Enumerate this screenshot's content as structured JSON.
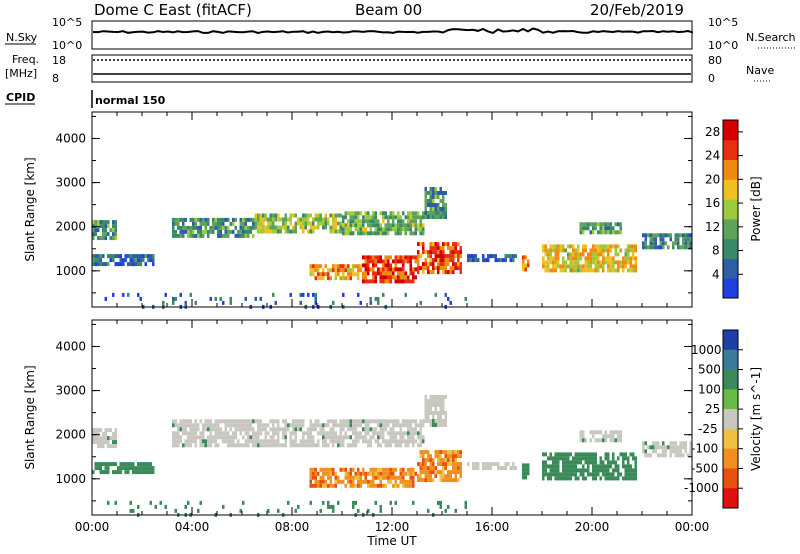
{
  "header": {
    "title": "Dome C East (fitACF)",
    "beam": "Beam 00",
    "date": "20/Feb/2019"
  },
  "strips": {
    "nsky_label": "N.Sky",
    "nsky_ticks": [
      "10^5",
      "10^0"
    ],
    "nsearch_label": "N.Search",
    "nsearch_ticks": [
      "10^5",
      "10^0"
    ],
    "freq_label": "Freq.",
    "freq_unit": "[MHz]",
    "freq_ticks": [
      "18",
      "8"
    ],
    "nave_label": "Nave",
    "nave_ticks": [
      "80",
      "0"
    ],
    "cpid_label": "CPID",
    "cpid_value": "normal 150"
  },
  "colors": {
    "power": [
      "#1f3fe0",
      "#2d5fa8",
      "#3a8a6a",
      "#5fa35a",
      "#9ccc3c",
      "#f0c020",
      "#f08a10",
      "#e83010",
      "#d40000"
    ],
    "velocity": [
      "#1f3fa8",
      "#3a7a9a",
      "#3a8a5a",
      "#66bb44",
      "#c8c8c0",
      "#f0c040",
      "#f09020",
      "#e85010",
      "#e01010"
    ]
  },
  "chart_data": [
    {
      "type": "heatmap",
      "title": "",
      "xlabel": "",
      "ylabel": "Slant Range [km]",
      "x_ticks": [
        "00:00",
        "04:00",
        "08:00",
        "12:00",
        "16:00",
        "20:00",
        "00:00"
      ],
      "y_ticks": [
        "1000",
        "2000",
        "3000",
        "4000"
      ],
      "xlim": [
        0,
        24
      ],
      "ylim": [
        180,
        4600
      ],
      "colorbar": {
        "label": "Power [dB]",
        "ticks": [
          "4",
          "8",
          "12",
          "16",
          "20",
          "24",
          "28"
        ],
        "range": [
          0,
          30
        ]
      },
      "regions": [
        {
          "x": [
            0.0,
            2.5
          ],
          "y": [
            1150,
            1380
          ],
          "value": 6
        },
        {
          "x": [
            0.0,
            1.0
          ],
          "y": [
            1700,
            2150
          ],
          "value": 10
        },
        {
          "x": [
            3.2,
            6.5
          ],
          "y": [
            1750,
            2200
          ],
          "value": 10
        },
        {
          "x": [
            6.5,
            10.0
          ],
          "y": [
            1850,
            2300
          ],
          "value": 14
        },
        {
          "x": [
            10.0,
            13.3
          ],
          "y": [
            1850,
            2350
          ],
          "value": 12
        },
        {
          "x": [
            13.3,
            14.2
          ],
          "y": [
            2200,
            2900
          ],
          "value": 9
        },
        {
          "x": [
            8.7,
            10.8
          ],
          "y": [
            800,
            1150
          ],
          "value": 20
        },
        {
          "x": [
            10.8,
            13.0
          ],
          "y": [
            800,
            1350
          ],
          "value": 26
        },
        {
          "x": [
            13.0,
            14.8
          ],
          "y": [
            950,
            1650
          ],
          "value": 24
        },
        {
          "x": [
            15.0,
            17.0
          ],
          "y": [
            1250,
            1380
          ],
          "value": 5
        },
        {
          "x": [
            17.2,
            17.5
          ],
          "y": [
            1000,
            1350
          ],
          "value": 22
        },
        {
          "x": [
            18.0,
            21.8
          ],
          "y": [
            1000,
            1600
          ],
          "value": 18
        },
        {
          "x": [
            19.5,
            21.2
          ],
          "y": [
            1850,
            2100
          ],
          "value": 11
        },
        {
          "x": [
            22.0,
            24.0
          ],
          "y": [
            1500,
            1850
          ],
          "value": 8
        },
        {
          "x": [
            0.5,
            15.0
          ],
          "y": [
            200,
            500
          ],
          "value": 5
        }
      ]
    },
    {
      "type": "heatmap",
      "title": "",
      "xlabel": "Time UT",
      "ylabel": "Slant Range [km]",
      "x_ticks": [
        "00:00",
        "04:00",
        "08:00",
        "12:00",
        "16:00",
        "20:00",
        "00:00"
      ],
      "y_ticks": [
        "1000",
        "2000",
        "3000",
        "4000"
      ],
      "xlim": [
        0,
        24
      ],
      "ylim": [
        180,
        4600
      ],
      "colorbar": {
        "label": "Velocity [m s^-1]",
        "ticks": [
          "1000",
          "500",
          "100",
          "25",
          "-25",
          "-100",
          "-500",
          "-1000"
        ]
      },
      "regions": [
        {
          "x": [
            0.0,
            2.5
          ],
          "y": [
            1150,
            1380
          ],
          "value": 100
        },
        {
          "x": [
            0.0,
            1.0
          ],
          "y": [
            1700,
            2150
          ],
          "value": 0
        },
        {
          "x": [
            3.2,
            13.3
          ],
          "y": [
            1750,
            2350
          ],
          "value": 0
        },
        {
          "x": [
            13.3,
            14.2
          ],
          "y": [
            2200,
            2900
          ],
          "value": 0
        },
        {
          "x": [
            8.7,
            13.0
          ],
          "y": [
            800,
            1250
          ],
          "value": -300
        },
        {
          "x": [
            13.0,
            14.8
          ],
          "y": [
            950,
            1650
          ],
          "value": -300
        },
        {
          "x": [
            15.0,
            17.0
          ],
          "y": [
            1250,
            1380
          ],
          "value": 0
        },
        {
          "x": [
            17.2,
            17.5
          ],
          "y": [
            1000,
            1350
          ],
          "value": 200
        },
        {
          "x": [
            18.0,
            21.8
          ],
          "y": [
            1000,
            1600
          ],
          "value": 200
        },
        {
          "x": [
            19.5,
            21.2
          ],
          "y": [
            1850,
            2100
          ],
          "value": 0
        },
        {
          "x": [
            22.0,
            24.0
          ],
          "y": [
            1500,
            1850
          ],
          "value": 0
        },
        {
          "x": [
            0.5,
            15.0
          ],
          "y": [
            200,
            500
          ],
          "value": 50
        }
      ]
    }
  ]
}
